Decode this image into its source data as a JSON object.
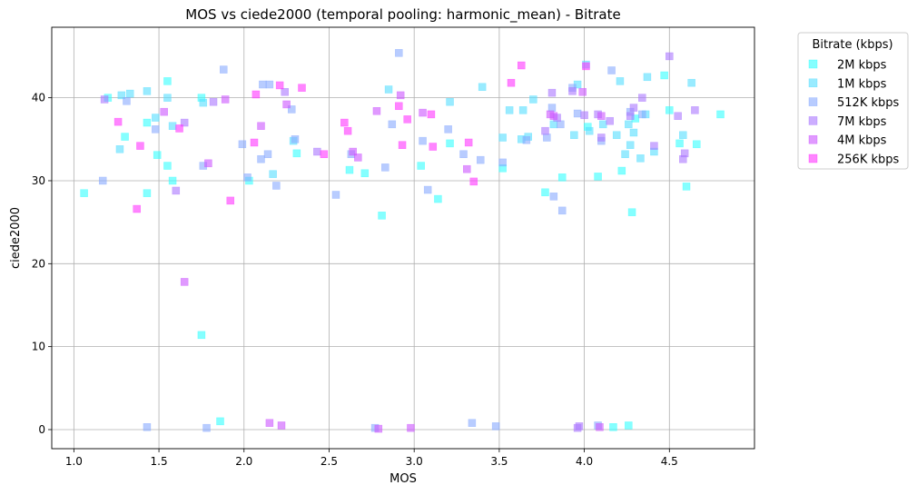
{
  "chart_data": {
    "type": "scatter",
    "title": "MOS vs ciede2000 (temporal pooling: harmonic_mean) - Bitrate",
    "xlabel": "MOS",
    "ylabel": "ciede2000",
    "xlim": [
      0.87,
      5.0
    ],
    "ylim": [
      -2.3,
      48.5
    ],
    "xticks": [
      1.0,
      1.5,
      2.0,
      2.5,
      3.0,
      3.5,
      4.0,
      4.5
    ],
    "xtick_labels": [
      "1.0",
      "1.5",
      "2.0",
      "2.5",
      "3.0",
      "3.5",
      "4.0",
      "4.5"
    ],
    "yticks": [
      0,
      10,
      20,
      30,
      40
    ],
    "ytick_labels": [
      "0",
      "10",
      "20",
      "30",
      "40"
    ],
    "grid": true,
    "marker": "square",
    "legend": {
      "title": "Bitrate (kbps)",
      "placement": "outside-top-right"
    },
    "series": [
      {
        "name": "2M kbps",
        "color": "#33ffff",
        "points": [
          [
            1.06,
            28.5
          ],
          [
            1.2,
            40.0
          ],
          [
            1.3,
            35.3
          ],
          [
            1.43,
            28.5
          ],
          [
            1.43,
            37.0
          ],
          [
            1.49,
            33.1
          ],
          [
            1.55,
            42.0
          ],
          [
            1.55,
            31.8
          ],
          [
            1.58,
            30.0
          ],
          [
            1.75,
            40.0
          ],
          [
            1.75,
            11.4
          ],
          [
            1.86,
            1.0
          ],
          [
            2.03,
            30.0
          ],
          [
            2.31,
            33.3
          ],
          [
            2.62,
            31.3
          ],
          [
            2.71,
            30.9
          ],
          [
            2.81,
            25.8
          ],
          [
            3.04,
            31.8
          ],
          [
            3.14,
            27.8
          ],
          [
            3.21,
            34.5
          ],
          [
            3.52,
            31.5
          ],
          [
            3.77,
            28.6
          ],
          [
            3.87,
            30.4
          ],
          [
            4.02,
            36.5
          ],
          [
            4.08,
            30.5
          ],
          [
            4.17,
            0.3
          ],
          [
            4.22,
            31.2
          ],
          [
            4.26,
            0.5
          ],
          [
            4.28,
            26.2
          ],
          [
            4.3,
            37.5
          ],
          [
            4.47,
            42.7
          ],
          [
            4.5,
            38.5
          ],
          [
            4.56,
            34.5
          ],
          [
            4.6,
            29.3
          ],
          [
            4.66,
            34.4
          ],
          [
            4.8,
            38.0
          ]
        ]
      },
      {
        "name": "1M kbps",
        "color": "#55ddff",
        "points": [
          [
            1.27,
            33.8
          ],
          [
            1.28,
            40.3
          ],
          [
            1.33,
            40.5
          ],
          [
            1.43,
            40.8
          ],
          [
            1.48,
            37.6
          ],
          [
            1.55,
            40.0
          ],
          [
            1.58,
            36.6
          ],
          [
            1.76,
            39.4
          ],
          [
            2.17,
            30.8
          ],
          [
            2.29,
            34.8
          ],
          [
            2.85,
            41.0
          ],
          [
            3.21,
            39.5
          ],
          [
            3.4,
            41.3
          ],
          [
            3.52,
            35.2
          ],
          [
            3.56,
            38.5
          ],
          [
            3.63,
            35.0
          ],
          [
            3.64,
            38.5
          ],
          [
            3.67,
            35.3
          ],
          [
            3.7,
            39.8
          ],
          [
            3.82,
            36.8
          ],
          [
            3.94,
            35.5
          ],
          [
            3.96,
            41.6
          ],
          [
            4.01,
            44.0
          ],
          [
            4.03,
            36.0
          ],
          [
            4.11,
            36.8
          ],
          [
            4.19,
            35.5
          ],
          [
            4.21,
            42.0
          ],
          [
            4.24,
            33.2
          ],
          [
            4.26,
            36.8
          ],
          [
            4.27,
            34.3
          ],
          [
            4.29,
            35.8
          ],
          [
            4.33,
            32.7
          ],
          [
            4.36,
            38.0
          ],
          [
            4.37,
            42.5
          ],
          [
            4.41,
            33.5
          ],
          [
            4.58,
            35.5
          ],
          [
            4.63,
            41.8
          ]
        ]
      },
      {
        "name": "512K kbps",
        "color": "#88aaff",
        "points": [
          [
            1.17,
            30.0
          ],
          [
            1.31,
            39.6
          ],
          [
            1.43,
            0.3
          ],
          [
            1.48,
            36.2
          ],
          [
            1.76,
            31.8
          ],
          [
            1.78,
            0.2
          ],
          [
            1.88,
            43.4
          ],
          [
            1.99,
            34.4
          ],
          [
            2.02,
            30.4
          ],
          [
            2.1,
            32.6
          ],
          [
            2.11,
            41.6
          ],
          [
            2.14,
            33.2
          ],
          [
            2.15,
            41.6
          ],
          [
            2.19,
            29.4
          ],
          [
            2.28,
            38.6
          ],
          [
            2.3,
            35.0
          ],
          [
            2.54,
            28.3
          ],
          [
            2.63,
            33.2
          ],
          [
            2.77,
            0.2
          ],
          [
            2.83,
            31.6
          ],
          [
            2.87,
            36.8
          ],
          [
            2.91,
            45.4
          ],
          [
            3.05,
            34.8
          ],
          [
            3.08,
            28.9
          ],
          [
            3.2,
            36.2
          ],
          [
            3.29,
            33.2
          ],
          [
            3.34,
            0.8
          ],
          [
            3.39,
            32.5
          ],
          [
            3.48,
            0.4
          ],
          [
            3.52,
            32.2
          ],
          [
            3.66,
            34.9
          ],
          [
            3.78,
            35.2
          ],
          [
            3.81,
            38.8
          ],
          [
            3.82,
            28.1
          ],
          [
            3.86,
            36.8
          ],
          [
            3.87,
            26.4
          ],
          [
            3.93,
            41.2
          ],
          [
            3.96,
            38.1
          ],
          [
            4.08,
            0.5
          ],
          [
            4.1,
            34.8
          ],
          [
            4.16,
            43.3
          ],
          [
            4.27,
            38.3
          ],
          [
            4.34,
            38.0
          ]
        ]
      },
      {
        "name": "7M kbps",
        "color": "#aa77ff",
        "points": [
          [
            1.18,
            39.8
          ],
          [
            1.6,
            28.8
          ],
          [
            1.65,
            37.0
          ],
          [
            1.82,
            39.5
          ],
          [
            2.24,
            40.7
          ],
          [
            2.43,
            33.5
          ],
          [
            3.77,
            36.0
          ],
          [
            3.81,
            40.6
          ],
          [
            3.84,
            37.6
          ],
          [
            3.93,
            40.8
          ],
          [
            3.96,
            0.2
          ],
          [
            3.97,
            0.4
          ],
          [
            4.0,
            37.9
          ],
          [
            4.08,
            38.0
          ],
          [
            4.1,
            35.2
          ],
          [
            4.15,
            37.2
          ],
          [
            4.27,
            37.8
          ],
          [
            4.29,
            38.8
          ],
          [
            4.34,
            40.0
          ],
          [
            4.41,
            34.2
          ],
          [
            4.5,
            45.0
          ],
          [
            4.55,
            37.8
          ],
          [
            4.58,
            32.6
          ],
          [
            4.59,
            33.3
          ],
          [
            4.65,
            38.5
          ]
        ]
      },
      {
        "name": "4M kbps",
        "color": "#cc55ff",
        "points": [
          [
            1.53,
            38.3
          ],
          [
            1.65,
            17.8
          ],
          [
            1.79,
            32.1
          ],
          [
            1.89,
            39.8
          ],
          [
            2.1,
            36.6
          ],
          [
            2.15,
            0.8
          ],
          [
            2.22,
            0.5
          ],
          [
            2.25,
            39.2
          ],
          [
            2.64,
            33.5
          ],
          [
            2.67,
            32.8
          ],
          [
            2.78,
            38.4
          ],
          [
            2.79,
            0.1
          ],
          [
            2.92,
            40.3
          ],
          [
            2.98,
            0.2
          ],
          [
            3.05,
            38.2
          ],
          [
            3.31,
            31.4
          ],
          [
            3.8,
            38.0
          ],
          [
            3.82,
            37.8
          ],
          [
            3.99,
            40.7
          ],
          [
            4.09,
            0.3
          ],
          [
            4.1,
            37.8
          ]
        ]
      },
      {
        "name": "256K kbps",
        "color": "#ff33ff",
        "points": [
          [
            1.26,
            37.1
          ],
          [
            1.37,
            26.6
          ],
          [
            1.39,
            34.2
          ],
          [
            1.62,
            36.3
          ],
          [
            1.92,
            27.6
          ],
          [
            2.06,
            34.6
          ],
          [
            2.07,
            40.4
          ],
          [
            2.21,
            41.5
          ],
          [
            2.34,
            41.2
          ],
          [
            2.47,
            33.2
          ],
          [
            2.59,
            37.0
          ],
          [
            2.61,
            36.0
          ],
          [
            2.91,
            39.0
          ],
          [
            2.93,
            34.3
          ],
          [
            2.96,
            37.4
          ],
          [
            3.1,
            38.0
          ],
          [
            3.11,
            34.1
          ],
          [
            3.32,
            34.6
          ],
          [
            3.35,
            29.9
          ],
          [
            3.57,
            41.8
          ],
          [
            3.63,
            43.9
          ],
          [
            4.01,
            43.8
          ]
        ]
      }
    ]
  }
}
